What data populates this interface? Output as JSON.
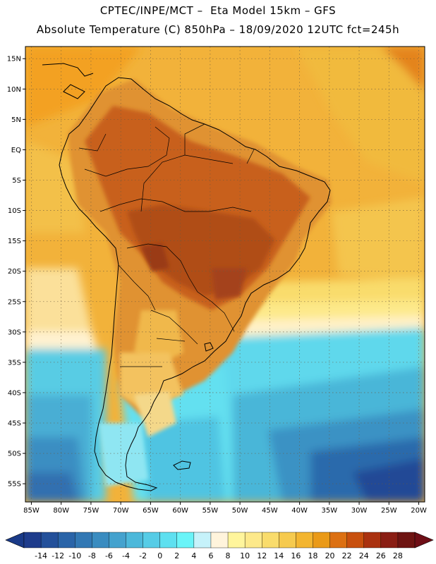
{
  "header": {
    "line1": "CPTEC/INPE/MCT –  Eta Model 15km – GFS",
    "line2": "Absolute Temperature (C) 850hPa – 18/09/2020 12UTC fct=245h"
  },
  "map": {
    "lon_range": [
      -86,
      -19
    ],
    "lat_range": [
      -58,
      17
    ],
    "lat_ticks": [
      {
        "value": 15,
        "label": "15N"
      },
      {
        "value": 10,
        "label": "10N"
      },
      {
        "value": 5,
        "label": "5N"
      },
      {
        "value": 0,
        "label": "EQ"
      },
      {
        "value": -5,
        "label": "5S"
      },
      {
        "value": -10,
        "label": "10S"
      },
      {
        "value": -15,
        "label": "15S"
      },
      {
        "value": -20,
        "label": "20S"
      },
      {
        "value": -25,
        "label": "25S"
      },
      {
        "value": -30,
        "label": "30S"
      },
      {
        "value": -35,
        "label": "35S"
      },
      {
        "value": -40,
        "label": "40S"
      },
      {
        "value": -45,
        "label": "45S"
      },
      {
        "value": -50,
        "label": "50S"
      },
      {
        "value": -55,
        "label": "55S"
      }
    ],
    "lon_ticks": [
      {
        "value": -85,
        "label": "85W"
      },
      {
        "value": -80,
        "label": "80W"
      },
      {
        "value": -75,
        "label": "75W"
      },
      {
        "value": -70,
        "label": "70W"
      },
      {
        "value": -65,
        "label": "65W"
      },
      {
        "value": -60,
        "label": "60W"
      },
      {
        "value": -55,
        "label": "55W"
      },
      {
        "value": -50,
        "label": "50W"
      },
      {
        "value": -45,
        "label": "45W"
      },
      {
        "value": -40,
        "label": "40W"
      },
      {
        "value": -35,
        "label": "35W"
      },
      {
        "value": -30,
        "label": "30W"
      },
      {
        "value": -25,
        "label": "25W"
      },
      {
        "value": -20,
        "label": "20W"
      }
    ]
  },
  "colorbar": {
    "labels": [
      "-14",
      "-12",
      "-10",
      "-8",
      "-6",
      "-4",
      "-2",
      "0",
      "2",
      "4",
      "6",
      "8",
      "10",
      "12",
      "14",
      "16",
      "18",
      "20",
      "22",
      "24",
      "26",
      "28"
    ],
    "colors": [
      "#1e3c8c",
      "#23509a",
      "#2a64a8",
      "#3278b4",
      "#3a8cc0",
      "#44a2ce",
      "#4cb8da",
      "#56cce6",
      "#5ee0f0",
      "#6af4f8",
      "#c6f2fa",
      "#fff4dc",
      "#fff59c",
      "#fde98a",
      "#f9dc6c",
      "#f6ca4e",
      "#f3b530",
      "#ea9a18",
      "#dc7012",
      "#c8500e",
      "#aa3210",
      "#8a1e14",
      "#6e1412"
    ],
    "under_color": "#1a3a88",
    "over_color": "#6e0e16"
  },
  "features": {
    "south_america": "south-america-outline",
    "borders": "country-borders",
    "falklands": "falkland-islands"
  }
}
